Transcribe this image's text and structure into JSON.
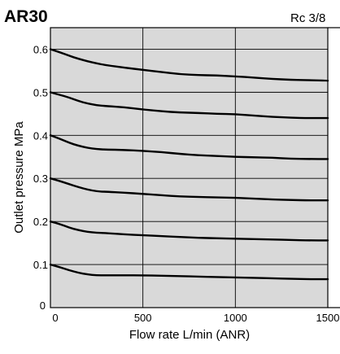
{
  "title": "AR30",
  "port_size": "Rc 3/8",
  "chart_data": {
    "type": "line",
    "title": "AR30",
    "subtitle": "Rc 3/8",
    "xlabel": "Flow rate  L/min (ANR)",
    "ylabel": "Outlet pressure  MPa",
    "xlim": [
      0,
      1500
    ],
    "ylim": [
      0,
      0.65
    ],
    "x_ticks": [
      0,
      500,
      1000,
      1500
    ],
    "x_tick_labels": [
      "0",
      "500",
      "1000",
      "1500"
    ],
    "y_ticks": [
      0.1,
      0.2,
      0.3,
      0.4,
      0.5,
      0.6
    ],
    "y_tick_labels": [
      "0.1",
      "0.2",
      "0.3",
      "0.4",
      "0.5",
      "0.6"
    ],
    "origin_label": "0",
    "grid": true,
    "plot_background": "#d9d9d9",
    "line_color": "#000000",
    "series": [
      {
        "x": [
          0,
          50,
          100,
          150,
          200,
          250,
          300,
          400,
          500,
          600,
          700,
          800,
          900,
          1000,
          1100,
          1200,
          1300,
          1400,
          1500
        ],
        "values": [
          0.6,
          0.593,
          0.585,
          0.578,
          0.572,
          0.567,
          0.563,
          0.557,
          0.552,
          0.547,
          0.542,
          0.54,
          0.539,
          0.537,
          0.534,
          0.531,
          0.529,
          0.528,
          0.527
        ]
      },
      {
        "x": [
          0,
          50,
          100,
          150,
          200,
          250,
          300,
          400,
          500,
          600,
          700,
          800,
          900,
          1000,
          1100,
          1200,
          1300,
          1400,
          1500
        ],
        "values": [
          0.5,
          0.494,
          0.488,
          0.48,
          0.474,
          0.47,
          0.468,
          0.465,
          0.46,
          0.456,
          0.453,
          0.452,
          0.45,
          0.449,
          0.446,
          0.443,
          0.441,
          0.44,
          0.44
        ]
      },
      {
        "x": [
          0,
          50,
          100,
          150,
          200,
          250,
          300,
          400,
          500,
          600,
          700,
          800,
          900,
          1000,
          1100,
          1200,
          1300,
          1400,
          1500
        ],
        "values": [
          0.4,
          0.392,
          0.383,
          0.376,
          0.371,
          0.368,
          0.367,
          0.366,
          0.364,
          0.361,
          0.357,
          0.354,
          0.352,
          0.35,
          0.349,
          0.348,
          0.346,
          0.345,
          0.345
        ]
      },
      {
        "x": [
          0,
          50,
          100,
          150,
          200,
          250,
          300,
          400,
          500,
          600,
          700,
          800,
          900,
          1000,
          1100,
          1200,
          1300,
          1400,
          1500
        ],
        "values": [
          0.3,
          0.294,
          0.287,
          0.28,
          0.274,
          0.27,
          0.269,
          0.267,
          0.264,
          0.261,
          0.258,
          0.257,
          0.256,
          0.255,
          0.253,
          0.251,
          0.25,
          0.249,
          0.249
        ]
      },
      {
        "x": [
          0,
          50,
          100,
          150,
          200,
          250,
          300,
          400,
          500,
          600,
          700,
          800,
          900,
          1000,
          1100,
          1200,
          1300,
          1400,
          1500
        ],
        "values": [
          0.2,
          0.194,
          0.186,
          0.18,
          0.176,
          0.174,
          0.173,
          0.17,
          0.168,
          0.166,
          0.164,
          0.162,
          0.161,
          0.16,
          0.159,
          0.158,
          0.157,
          0.156,
          0.156
        ]
      },
      {
        "x": [
          0,
          50,
          100,
          150,
          200,
          250,
          300,
          400,
          500,
          600,
          700,
          800,
          900,
          1000,
          1100,
          1200,
          1300,
          1400,
          1500
        ],
        "values": [
          0.1,
          0.094,
          0.087,
          0.081,
          0.077,
          0.075,
          0.075,
          0.075,
          0.075,
          0.074,
          0.073,
          0.072,
          0.071,
          0.07,
          0.069,
          0.068,
          0.067,
          0.066,
          0.066
        ]
      }
    ]
  }
}
